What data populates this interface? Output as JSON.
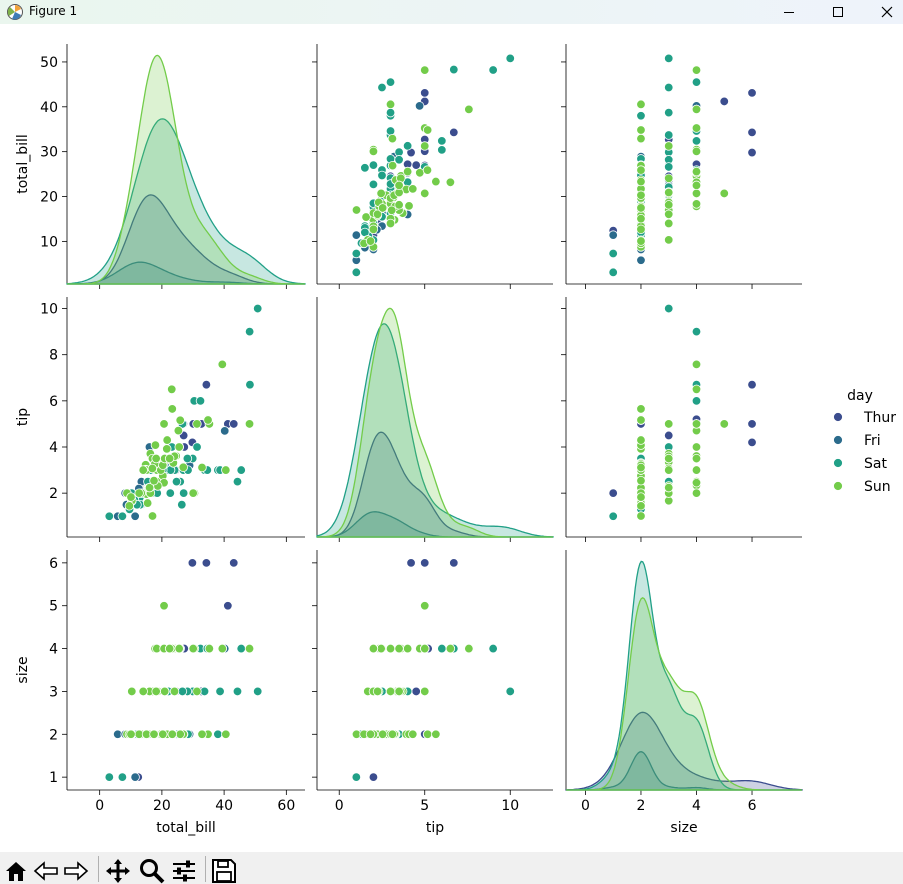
{
  "window": {
    "title": "Figure 1"
  },
  "toolbar": {
    "buttons": [
      "home-icon",
      "back-arrow-icon",
      "forward-arrow-icon",
      "pan-icon",
      "zoom-icon",
      "configure-subplots-icon",
      "save-icon"
    ]
  },
  "colors": {
    "Thur": "#3b4d8e",
    "Fri": "#2b6b8c",
    "Sat": "#21a087",
    "Sun": "#73cc4a"
  },
  "chart_data": {
    "type": "scatter",
    "kind": "pairplot",
    "title": "",
    "variables": [
      "total_bill",
      "tip",
      "size"
    ],
    "axes": {
      "total_bill": {
        "lim": [
          -10.5,
          66
        ],
        "ticks": [
          0,
          20,
          40,
          60
        ],
        "ylim": [
          0.5,
          54
        ],
        "yticks": [
          10,
          20,
          30,
          40,
          50
        ]
      },
      "tip": {
        "lim": [
          -1.3,
          12.5
        ],
        "ticks": [
          0,
          5,
          10
        ],
        "ylim": [
          0.1,
          10.5
        ],
        "yticks": [
          2,
          4,
          6,
          8,
          10
        ]
      },
      "size": {
        "lim": [
          -0.7,
          7.8
        ],
        "ticks": [
          0,
          2,
          4,
          6
        ],
        "ylim": [
          0.7,
          6.3
        ],
        "yticks": [
          1,
          2,
          3,
          4,
          5,
          6
        ]
      }
    },
    "legend": {
      "title": "day",
      "location": "right",
      "entries": [
        "Thur",
        "Fri",
        "Sat",
        "Sun"
      ]
    },
    "series": [
      {
        "name": "Thur",
        "total_bill": [
          13.4,
          16.7,
          22.4,
          19.1,
          41.2,
          27.2,
          34.8,
          10.3,
          17.9,
          14.5,
          12.7,
          20.3,
          15.0,
          8.6,
          26.9,
          32.7,
          18.3,
          11.7,
          24.5,
          16.3,
          43.1,
          13.8,
          29.8,
          21.0,
          14.8,
          9.8,
          18.0,
          25.3,
          34.3,
          12.4,
          17.5,
          15.7,
          27.0,
          11.4,
          20.6,
          19.8,
          23.6,
          14.0,
          30.1,
          16.0
        ],
        "tip": [
          2.0,
          2.5,
          3.5,
          3.0,
          5.0,
          4.0,
          5.2,
          1.7,
          3.0,
          2.2,
          2.0,
          2.8,
          2.0,
          1.5,
          5.0,
          5.0,
          3.0,
          1.9,
          3.0,
          2.5,
          5.0,
          2.0,
          4.2,
          3.0,
          2.0,
          1.5,
          2.5,
          4.0,
          6.7,
          2.0,
          3.5,
          2.3,
          4.5,
          2.0,
          3.0,
          3.2,
          3.5,
          2.0,
          5.0,
          2.5
        ],
        "size": [
          2,
          2,
          2,
          2,
          5,
          4,
          4,
          2,
          2,
          2,
          2,
          2,
          2,
          2,
          2,
          3,
          2,
          2,
          3,
          2,
          6,
          2,
          6,
          3,
          2,
          2,
          2,
          2,
          6,
          1,
          2,
          2,
          3,
          2,
          2,
          2,
          3,
          2,
          4,
          2
        ]
      },
      {
        "name": "Fri",
        "total_bill": [
          28.9,
          21.0,
          12.5,
          15.7,
          11.4,
          16.4,
          22.5,
          15.4,
          5.8,
          8.6,
          10.1,
          12.9,
          16.0,
          13.4,
          8.2,
          40.2,
          22.8,
          10.3,
          12.6
        ],
        "tip": [
          3.2,
          3.2,
          1.5,
          3.0,
          1.0,
          2.5,
          3.5,
          1.6,
          1.0,
          1.5,
          1.8,
          2.2,
          4.0,
          2.5,
          2.0,
          4.7,
          3.5,
          2.0,
          2.2
        ],
        "size": [
          2,
          2,
          2,
          2,
          1,
          2,
          3,
          2,
          2,
          2,
          2,
          2,
          2,
          2,
          2,
          4,
          2,
          2,
          2
        ]
      },
      {
        "name": "Sat",
        "total_bill": [
          20.7,
          38.0,
          26.9,
          48.3,
          31.3,
          15.0,
          50.8,
          17.3,
          28.4,
          44.3,
          20.2,
          16.0,
          22.7,
          19.8,
          7.3,
          17.0,
          24.1,
          35.3,
          25.9,
          48.2,
          10.3,
          13.4,
          18.2,
          26.4,
          21.7,
          15.8,
          30.4,
          22.8,
          9.6,
          38.7,
          16.8,
          22.0,
          12.9,
          20.1,
          27.0,
          14.2,
          33.7,
          18.9,
          24.7,
          39.4,
          11.2,
          21.5,
          3.1,
          25.6,
          17.6,
          32.4,
          13.0,
          19.7,
          29.9,
          23.2,
          15.5,
          28.2,
          45.5,
          20.3,
          26.6,
          12.0,
          34.6,
          18.5,
          16.3,
          22.1
        ],
        "tip": [
          3.4,
          3.0,
          3.0,
          6.7,
          4.0,
          2.0,
          10.0,
          3.5,
          3.0,
          2.5,
          2.5,
          2.0,
          2.0,
          2.5,
          1.0,
          2.0,
          3.0,
          5.0,
          2.5,
          9.0,
          2.0,
          1.5,
          3.5,
          1.5,
          3.0,
          2.0,
          6.0,
          3.0,
          1.3,
          3.0,
          2.0,
          4.0,
          1.8,
          2.5,
          2.0,
          2.0,
          3.0,
          3.0,
          2.5,
          7.6,
          1.7,
          3.5,
          1.0,
          4.0,
          2.0,
          6.0,
          1.5,
          3.0,
          3.5,
          4.0,
          2.5,
          3.5,
          3.0,
          3.0,
          5.0,
          1.5,
          3.0,
          2.0,
          3.0,
          3.5
        ],
        "size": [
          2,
          2,
          3,
          4,
          3,
          2,
          3,
          2,
          2,
          3,
          2,
          2,
          2,
          2,
          1,
          2,
          2,
          4,
          4,
          4,
          2,
          2,
          2,
          2,
          3,
          2,
          4,
          2,
          2,
          3,
          2,
          2,
          2,
          3,
          2,
          2,
          3,
          2,
          2,
          4,
          2,
          3,
          1,
          4,
          2,
          4,
          2,
          2,
          3,
          2,
          2,
          3,
          4,
          3,
          3,
          2,
          4,
          2,
          2,
          3
        ]
      },
      {
        "name": "Sun",
        "total_bill": [
          16.99,
          10.34,
          21.01,
          23.68,
          24.59,
          25.29,
          8.77,
          26.88,
          15.04,
          14.78,
          10.27,
          35.26,
          15.42,
          18.43,
          14.83,
          21.58,
          10.33,
          16.29,
          16.97,
          20.65,
          17.92,
          20.29,
          15.77,
          39.42,
          19.82,
          17.81,
          13.37,
          12.69,
          21.7,
          19.65,
          9.55,
          18.35,
          15.06,
          20.69,
          17.78,
          24.06,
          16.31,
          16.93,
          18.69,
          31.27,
          16.04,
          34.81,
          25.89,
          48.17,
          20.29,
          30.46,
          18.15,
          23.17,
          40.55,
          20.69,
          20.9,
          30.06,
          25.56,
          17.46,
          34.83,
          10.07,
          22.49,
          23.33,
          32.9,
          14.0
        ],
        "tip": [
          1.01,
          1.66,
          3.5,
          3.31,
          3.61,
          4.71,
          2.0,
          3.12,
          1.96,
          3.23,
          1.71,
          5.0,
          1.57,
          3.0,
          3.02,
          3.92,
          1.67,
          3.71,
          3.5,
          3.35,
          4.08,
          2.75,
          2.23,
          7.58,
          3.18,
          2.34,
          2.0,
          2.0,
          4.3,
          3.0,
          1.45,
          2.5,
          3.0,
          2.45,
          3.27,
          3.6,
          2.0,
          3.07,
          2.31,
          5.0,
          2.24,
          5.2,
          5.16,
          5.0,
          3.21,
          2.0,
          3.5,
          6.5,
          3.0,
          5.0,
          3.5,
          2.0,
          4.0,
          2.54,
          5.17,
          1.83,
          3.5,
          5.65,
          3.11,
          3.0
        ],
        "size": [
          2,
          3,
          3,
          2,
          4,
          4,
          2,
          2,
          2,
          2,
          2,
          4,
          2,
          4,
          2,
          2,
          3,
          3,
          3,
          3,
          2,
          2,
          2,
          4,
          2,
          4,
          2,
          2,
          2,
          2,
          2,
          4,
          2,
          4,
          2,
          3,
          3,
          3,
          3,
          3,
          3,
          2,
          2,
          4,
          2,
          4,
          3,
          4,
          2,
          5,
          3,
          4,
          4,
          2,
          2,
          2,
          4,
          2,
          2,
          3
        ]
      }
    ]
  }
}
